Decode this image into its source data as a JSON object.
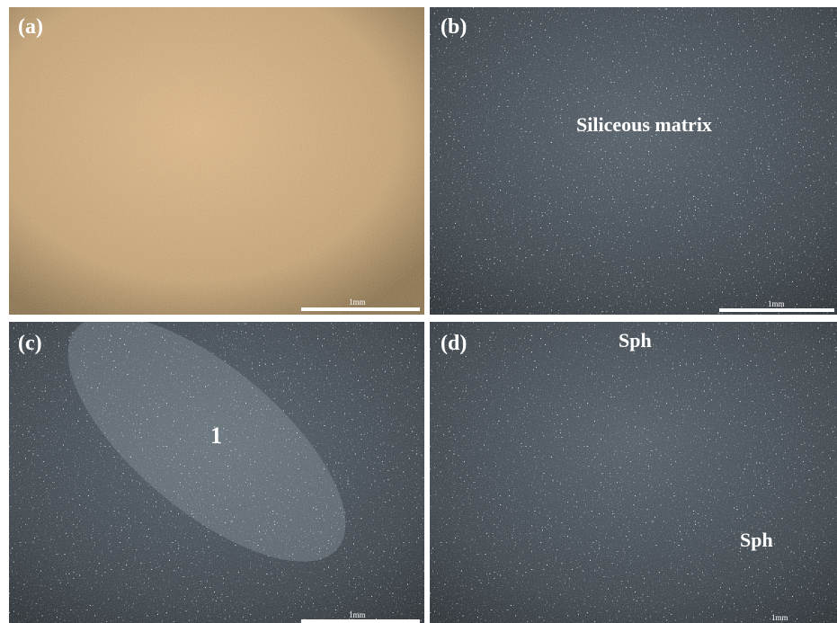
{
  "panels": [
    {
      "label": "(a)",
      "scale_bar": "1mm"
    },
    {
      "label": "(b)",
      "annotations": [
        "Siliceous matrix"
      ],
      "scale_bar": "1mm"
    },
    {
      "label": "(c)",
      "annotations": [
        "1"
      ],
      "scale_bar": "1mm"
    },
    {
      "label": "(d)",
      "annotations": [
        "Sph",
        "Sph"
      ],
      "scale_bar": "1mm"
    }
  ]
}
